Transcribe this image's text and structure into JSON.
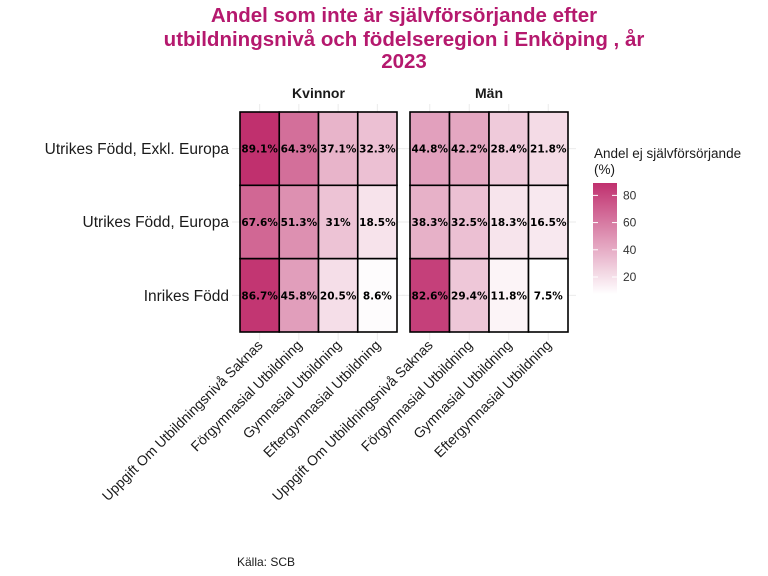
{
  "chart_data": {
    "type": "heatmap",
    "title_lines": [
      "Andel som inte är självförsörjande efter",
      "utbildningsnivå och födelseregion i Enköping , år",
      "2023"
    ],
    "facets": [
      "Kvinnor",
      "Män"
    ],
    "x_categories": [
      "Uppgift Om Utbildningsnivå Saknas",
      "Förgymnasial Utbildning",
      "Gymnasial Utbildning",
      "Eftergymnasial Utbildning"
    ],
    "y_categories": [
      "Utrikes Född, Exkl. Europa",
      "Utrikes Född, Europa",
      "Inrikes Född"
    ],
    "values": {
      "Kvinnor": [
        [
          89.1,
          64.3,
          37.1,
          32.3
        ],
        [
          67.6,
          51.3,
          31.0,
          18.5
        ],
        [
          86.7,
          45.8,
          20.5,
          8.6
        ]
      ],
      "Män": [
        [
          44.8,
          42.2,
          28.4,
          21.8
        ],
        [
          38.3,
          32.5,
          18.3,
          16.5
        ],
        [
          82.6,
          29.4,
          11.8,
          7.5
        ]
      ]
    },
    "labels": {
      "Kvinnor": [
        [
          "89.1%",
          "64.3%",
          "37.1%",
          "32.3%"
        ],
        [
          "67.6%",
          "51.3%",
          "31%",
          "18.5%"
        ],
        [
          "86.7%",
          "45.8%",
          "20.5%",
          "8.6%"
        ]
      ],
      "Män": [
        [
          "44.8%",
          "42.2%",
          "28.4%",
          "21.8%"
        ],
        [
          "38.3%",
          "32.5%",
          "18.3%",
          "16.5%"
        ],
        [
          "82.6%",
          "29.4%",
          "11.8%",
          "7.5%"
        ]
      ]
    },
    "legend": {
      "title_lines": [
        "Andel ej självförsörjande",
        "(%)"
      ],
      "ticks": [
        20,
        40,
        60,
        80
      ],
      "range": [
        7.5,
        89.1
      ],
      "low_color": "#ffffff",
      "high_color": "#c0306e"
    },
    "xlabel": "",
    "ylabel": "",
    "caption": "Källa: SCB",
    "grid": true
  }
}
